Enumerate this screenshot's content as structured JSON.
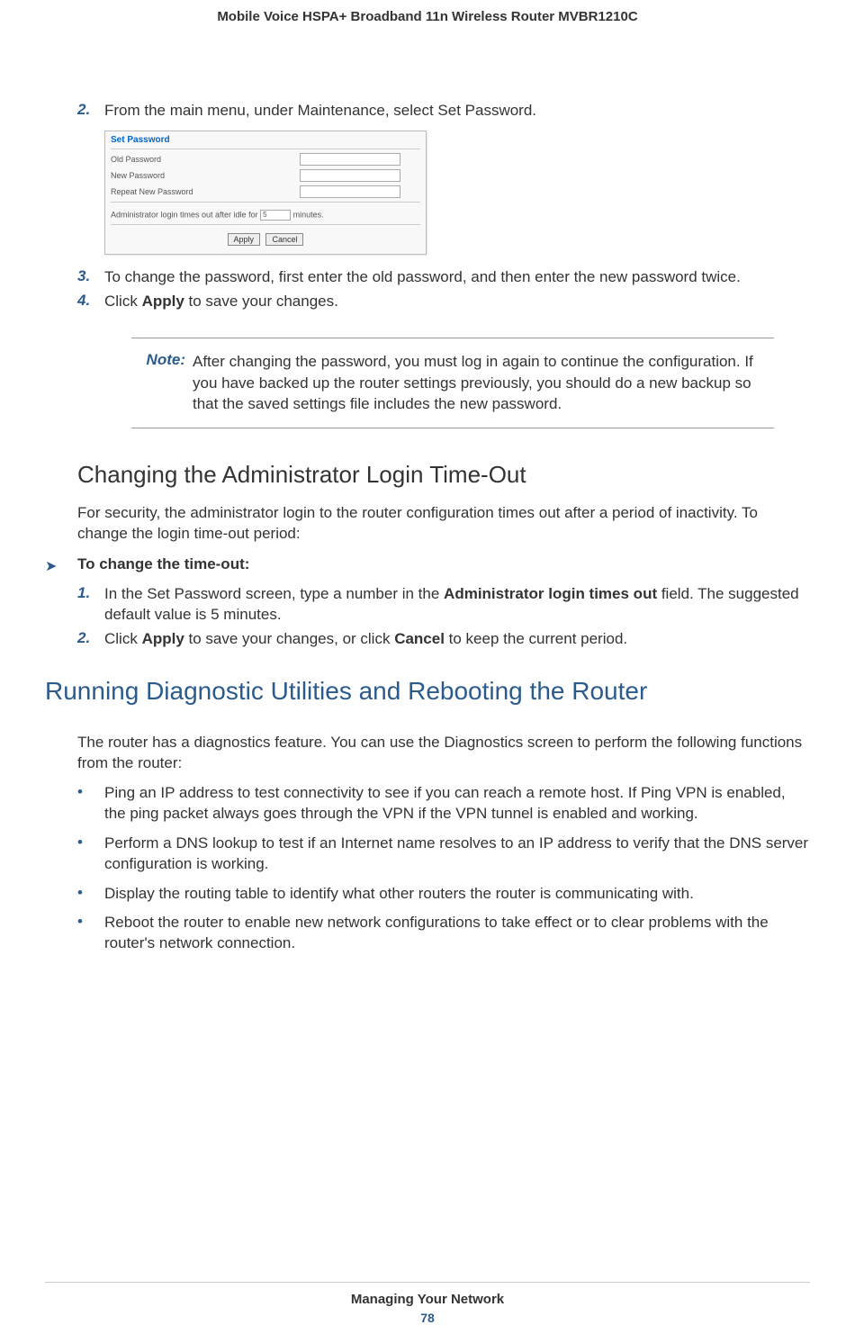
{
  "header": {
    "title": "Mobile Voice HSPA+ Broadband 11n Wireless Router MVBR1210C"
  },
  "colors": {
    "accent": "#2b5b8c",
    "text": "#333333"
  },
  "steps": {
    "s2": {
      "num": "2.",
      "text": "From the main menu, under Maintenance, select Set Password."
    },
    "s3": {
      "num": "3.",
      "text": "To change the password, first enter the old password, and then enter the new password twice."
    },
    "s4": {
      "num": "4.",
      "pre": "Click ",
      "bold": "Apply",
      "post": " to save your changes."
    }
  },
  "screenshot": {
    "title": "Set Password",
    "labels": {
      "old": "Old Password",
      "new": "New Password",
      "repeat": "Repeat New Password"
    },
    "timeout_pre": "Administrator login times out after idle for ",
    "timeout_val": "5",
    "timeout_post": " minutes.",
    "btn_apply": "Apply",
    "btn_cancel": "Cancel"
  },
  "note": {
    "label": "Note:",
    "text": "After changing the password, you must log in again to continue the configuration. If you have backed up the router settings previously, you should do a new backup so that the saved settings file includes the new password."
  },
  "section2": {
    "heading": "Changing the Administrator Login Time-Out",
    "para": "For security, the administrator login to the router configuration times out after a period of inactivity. To change the login time-out period:",
    "arrow_title": "To change the time-out:",
    "s1": {
      "num": "1.",
      "pre": "In the Set Password screen, type a number in the ",
      "bold": "Administrator login times out",
      "post": " field. The suggested default value is 5 minutes."
    },
    "s2": {
      "num": "2.",
      "pre": "Click ",
      "b1": "Apply",
      "mid": " to save your changes, or click ",
      "b2": "Cancel",
      "post": " to keep the current period."
    }
  },
  "section3": {
    "heading": "Running Diagnostic Utilities and Rebooting the Router",
    "para": "The router has a diagnostics feature. You can use the Diagnostics screen to perform the following functions from the router:",
    "bullets": {
      "b1": "Ping an IP address to test connectivity to see if you can reach a remote host. If Ping VPN is enabled, the ping packet always goes through the VPN if the VPN tunnel is enabled and working.",
      "b2": "Perform a DNS lookup to test if an Internet name resolves to an IP address to verify that the DNS server configuration is working.",
      "b3": "Display the routing table to identify what other routers the router is communicating with.",
      "b4": "Reboot the router to enable new network configurations to take effect or to clear problems with the router's network connection."
    }
  },
  "footer": {
    "title": "Managing Your Network",
    "page": "78"
  }
}
